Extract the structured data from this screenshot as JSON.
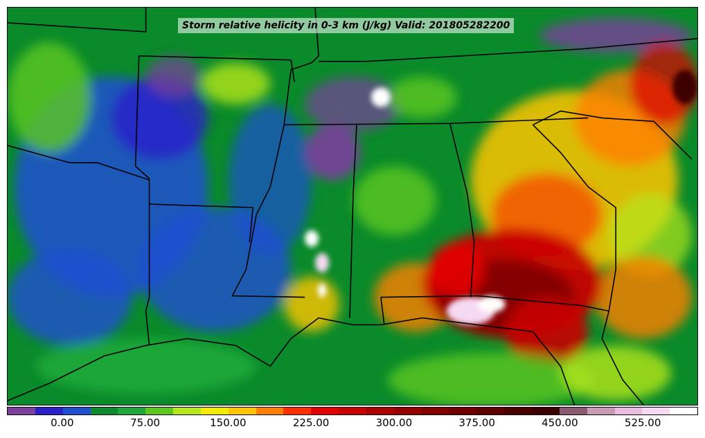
{
  "title": "Storm relative helicity in 0-3 km (J/kg) Valid: 201805282200",
  "colorbar": {
    "min": -50,
    "max": 575,
    "step": 25,
    "colors": [
      "#7b3f9e",
      "#2a1fc9",
      "#1e4fd1",
      "#0e8a2c",
      "#1ea83a",
      "#5cc81e",
      "#b4e61a",
      "#f4ea00",
      "#ffc400",
      "#ff7f00",
      "#ff2d00",
      "#e30000",
      "#c80000",
      "#ad0000",
      "#960000",
      "#820000",
      "#700000",
      "#5e0000",
      "#4b0000",
      "#3c0000",
      "#8a5a72",
      "#c89ab4",
      "#e9bde0",
      "#f6d9f2",
      "#ffffff"
    ],
    "ticks": [
      "0.00",
      "75.00",
      "150.00",
      "225.00",
      "300.00",
      "375.00",
      "450.00",
      "525.00"
    ],
    "tick_values": [
      0,
      75,
      150,
      225,
      300,
      375,
      450,
      525
    ]
  },
  "colors": {
    "background": "#0a8a2a",
    "border_lines": "#000000"
  }
}
